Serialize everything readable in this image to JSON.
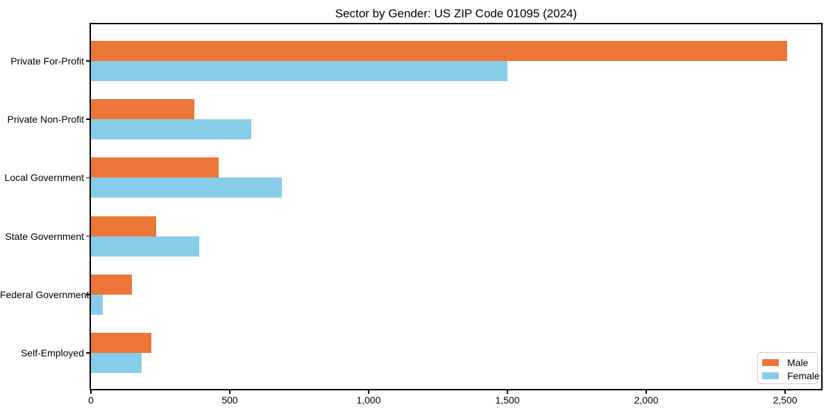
{
  "page": {
    "background": "#ffffff"
  },
  "chart_data": {
    "type": "bar",
    "orientation": "horizontal",
    "title": "Sector by Gender: US ZIP Code 01095 (2024)",
    "categories": [
      "Private For-Profit",
      "Private Non-Profit",
      "Local Government",
      "State Government",
      "Federal Government",
      "Self-Employed"
    ],
    "series": [
      {
        "name": "Male",
        "color": "#EC7637",
        "values": [
          2507,
          373,
          460,
          234,
          147,
          217
        ]
      },
      {
        "name": "Female",
        "color": "#87CDE9",
        "values": [
          1500,
          578,
          687,
          391,
          42,
          182
        ]
      }
    ],
    "xlabel": "",
    "ylabel": "",
    "xlim": [
      0,
      2630
    ],
    "x_ticks": [
      0,
      500,
      1000,
      1500,
      2000,
      2500
    ],
    "x_tick_labels": [
      "0",
      "500",
      "1,000",
      "1,500",
      "2,000",
      "2,500"
    ],
    "grid": false,
    "legend": {
      "position": "lower right",
      "entries": [
        "Male",
        "Female"
      ]
    },
    "colors": {
      "male": "#EC7637",
      "female": "#87CDE9",
      "spine": "#000000",
      "legend_border": "#cccccc",
      "text": "#000000"
    }
  }
}
